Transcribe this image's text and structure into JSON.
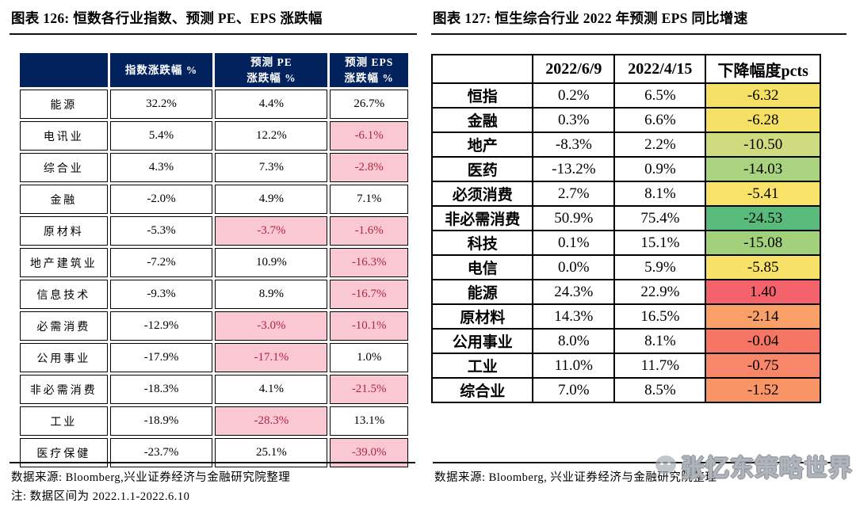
{
  "colors": {
    "header_navy": "#02225e",
    "highlight_pink": "#fac8d2",
    "highlight_red": "#b02642",
    "heat_green": "#59bb7b",
    "heat_yellow": "#f5e066",
    "heat_red": "#f4636c"
  },
  "left_panel": {
    "title": "图表 126: 恒数各行业指数、预测 PE、EPS 涨跌幅",
    "table": {
      "headers": [
        "",
        "指数涨跌幅 %",
        "预测 PE\n涨跌幅 %",
        "预测 EPS\n涨跌幅 %"
      ],
      "highlight_bg": "#fac8d2",
      "highlight_fg": "#b02642",
      "rows": [
        {
          "cells": [
            {
              "t": "能源"
            },
            {
              "t": "32.2%"
            },
            {
              "t": "4.4%"
            },
            {
              "t": "26.7%"
            }
          ]
        },
        {
          "cells": [
            {
              "t": "电讯业"
            },
            {
              "t": "5.4%"
            },
            {
              "t": "12.2%"
            },
            {
              "t": "-6.1%",
              "hl": true
            }
          ]
        },
        {
          "cells": [
            {
              "t": "综合业"
            },
            {
              "t": "4.3%"
            },
            {
              "t": "7.3%"
            },
            {
              "t": "-2.8%",
              "hl": true
            }
          ]
        },
        {
          "cells": [
            {
              "t": "金融"
            },
            {
              "t": "-2.0%"
            },
            {
              "t": "4.9%"
            },
            {
              "t": "7.1%"
            }
          ]
        },
        {
          "cells": [
            {
              "t": "原材料"
            },
            {
              "t": "-5.3%"
            },
            {
              "t": "-3.7%",
              "hl": true
            },
            {
              "t": "-1.6%",
              "hl": true
            }
          ]
        },
        {
          "cells": [
            {
              "t": "地产建筑业"
            },
            {
              "t": "-7.2%"
            },
            {
              "t": "10.9%"
            },
            {
              "t": "-16.3%",
              "hl": true
            }
          ]
        },
        {
          "cells": [
            {
              "t": "信息技术"
            },
            {
              "t": "-9.3%"
            },
            {
              "t": "8.9%"
            },
            {
              "t": "-16.7%",
              "hl": true
            }
          ]
        },
        {
          "cells": [
            {
              "t": "必需消费"
            },
            {
              "t": "-12.9%"
            },
            {
              "t": "-3.0%",
              "hl": true
            },
            {
              "t": "-10.1%",
              "hl": true
            }
          ]
        },
        {
          "cells": [
            {
              "t": "公用事业"
            },
            {
              "t": "-17.9%"
            },
            {
              "t": "-17.1%",
              "hl": true
            },
            {
              "t": "1.0%"
            }
          ]
        },
        {
          "cells": [
            {
              "t": "非必需消费"
            },
            {
              "t": "-18.3%"
            },
            {
              "t": "4.1%"
            },
            {
              "t": "-21.5%",
              "hl": true
            }
          ]
        },
        {
          "cells": [
            {
              "t": "工业"
            },
            {
              "t": "-18.9%"
            },
            {
              "t": "-28.3%",
              "hl": true
            },
            {
              "t": "13.1%"
            }
          ]
        },
        {
          "cells": [
            {
              "t": "医疗保健"
            },
            {
              "t": "-23.7%"
            },
            {
              "t": "25.1%"
            },
            {
              "t": "-39.0%",
              "hl": true
            }
          ]
        }
      ]
    },
    "footer": {
      "source": "数据来源: Bloomberg,兴业证券经济与金融研究院整理",
      "note": "注: 数据区间为 2022.1.1-2022.6.10"
    }
  },
  "right_panel": {
    "title": "图表 127: 恒生综合行业 2022 年预测 EPS 同比增速",
    "table": {
      "headers": [
        "",
        "2022/6/9",
        "2022/4/15",
        "下降幅度pcts"
      ],
      "rows": [
        {
          "cells": [
            {
              "t": "恒指"
            },
            {
              "t": "0.2%"
            },
            {
              "t": "6.5%"
            },
            {
              "t": "-6.32",
              "bg": "#f5e066"
            }
          ]
        },
        {
          "cells": [
            {
              "t": "金融"
            },
            {
              "t": "0.3%"
            },
            {
              "t": "6.6%"
            },
            {
              "t": "-6.28",
              "bg": "#f5e066"
            }
          ]
        },
        {
          "cells": [
            {
              "t": "地产"
            },
            {
              "t": "-8.3%"
            },
            {
              "t": "2.2%"
            },
            {
              "t": "-10.50",
              "bg": "#cedb7e"
            }
          ]
        },
        {
          "cells": [
            {
              "t": "医药"
            },
            {
              "t": "-13.2%"
            },
            {
              "t": "0.9%"
            },
            {
              "t": "-14.03",
              "bg": "#a9d37e"
            }
          ]
        },
        {
          "cells": [
            {
              "t": "必须消费"
            },
            {
              "t": "2.7%"
            },
            {
              "t": "8.1%"
            },
            {
              "t": "-5.41",
              "bg": "#f8e26a"
            }
          ]
        },
        {
          "cells": [
            {
              "t": "非必需消费"
            },
            {
              "t": "50.9%"
            },
            {
              "t": "75.4%"
            },
            {
              "t": "-24.53",
              "bg": "#59bb7b"
            }
          ]
        },
        {
          "cells": [
            {
              "t": "科技"
            },
            {
              "t": "0.1%"
            },
            {
              "t": "15.1%"
            },
            {
              "t": "-15.08",
              "bg": "#a2d07b"
            }
          ]
        },
        {
          "cells": [
            {
              "t": "电信"
            },
            {
              "t": "0.0%"
            },
            {
              "t": "5.9%"
            },
            {
              "t": "-5.85",
              "bg": "#f7e169"
            }
          ]
        },
        {
          "cells": [
            {
              "t": "能源"
            },
            {
              "t": "24.3%"
            },
            {
              "t": "22.9%"
            },
            {
              "t": "1.40",
              "bg": "#f4636c"
            }
          ]
        },
        {
          "cells": [
            {
              "t": "原材料"
            },
            {
              "t": "14.3%"
            },
            {
              "t": "16.5%"
            },
            {
              "t": "-2.14",
              "bg": "#f9a069"
            }
          ]
        },
        {
          "cells": [
            {
              "t": "公用事业"
            },
            {
              "t": "8.0%"
            },
            {
              "t": "8.1%"
            },
            {
              "t": "-0.04",
              "bg": "#f57565"
            }
          ]
        },
        {
          "cells": [
            {
              "t": "工业"
            },
            {
              "t": "11.0%"
            },
            {
              "t": "11.7%"
            },
            {
              "t": "-0.75",
              "bg": "#f78768"
            }
          ]
        },
        {
          "cells": [
            {
              "t": "综合业"
            },
            {
              "t": "7.0%"
            },
            {
              "t": "8.5%"
            },
            {
              "t": "-1.52",
              "bg": "#f99466"
            }
          ]
        }
      ]
    },
    "footer": {
      "source": "数据来源: Bloomberg, 兴业证券经济与金融研究院整理"
    },
    "watermark": {
      "text": "张忆东策略世界",
      "icon": "wechat-bubble-icon"
    }
  }
}
